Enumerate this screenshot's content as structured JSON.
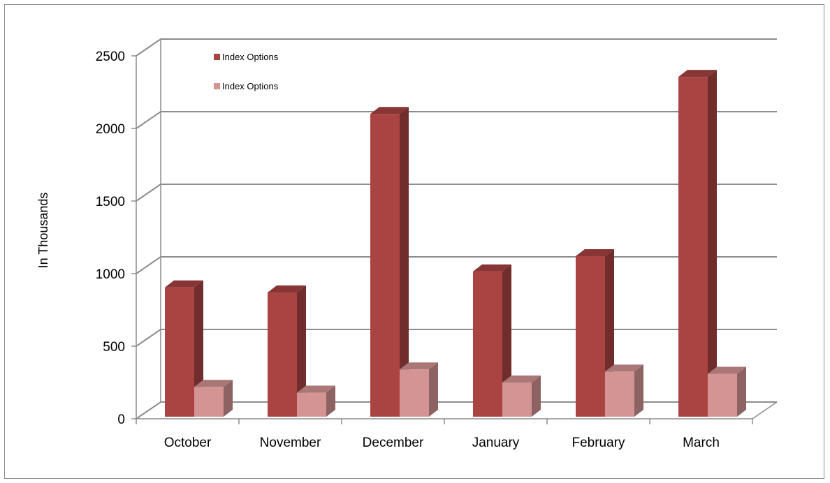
{
  "chart_data": {
    "type": "bar",
    "style": "3d-clustered-column",
    "categories": [
      "October",
      "November",
      "December",
      "January",
      "February",
      "March"
    ],
    "series": [
      {
        "name": "Index Options",
        "color": "#a94442",
        "values": [
          905,
          870,
          2100,
          1015,
          1120,
          2355
        ]
      },
      {
        "name": "Index Options",
        "color": "#d49494",
        "values": [
          220,
          180,
          340,
          250,
          325,
          310
        ]
      }
    ],
    "ylabel": "In Thousands",
    "xlabel": "",
    "ylim": [
      0,
      2500
    ],
    "yticks": [
      0,
      500,
      1000,
      1500,
      2000,
      2500
    ],
    "grid": true,
    "legend_position": "top-left"
  }
}
